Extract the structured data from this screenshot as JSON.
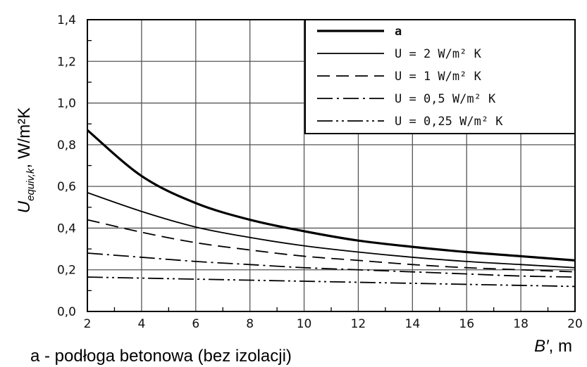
{
  "chart_data": {
    "type": "line",
    "x": [
      2,
      4,
      6,
      8,
      10,
      12,
      14,
      16,
      18,
      20
    ],
    "xlim": [
      2,
      20
    ],
    "ylim": [
      0.0,
      1.4
    ],
    "x_ticks": [
      "2",
      "4",
      "6",
      "8",
      "10",
      "12",
      "14",
      "16",
      "18",
      "20"
    ],
    "y_ticks": [
      "0,0",
      "0,2",
      "0,4",
      "0,6",
      "0,8",
      "1,0",
      "1,2",
      "1,4"
    ],
    "grid": true,
    "legend_position": "top-right",
    "ylabel": {
      "main": "U",
      "sub": "equiv,k",
      "unit": ", W/m²K"
    },
    "xlabel": {
      "main": "B′",
      "unit": ", m"
    },
    "caption": "a - podłoga betonowa (bez izolacji)",
    "series": [
      {
        "name": "a",
        "style": "solid-thick",
        "color": "#000000",
        "values": [
          0.87,
          0.65,
          0.52,
          0.44,
          0.385,
          0.34,
          0.31,
          0.285,
          0.265,
          0.245
        ]
      },
      {
        "name": "U = 2 W/m² K",
        "style": "solid",
        "color": "#000000",
        "values": [
          0.57,
          0.48,
          0.405,
          0.355,
          0.315,
          0.285,
          0.26,
          0.24,
          0.225,
          0.21
        ]
      },
      {
        "name": "U = 1 W/m² K",
        "style": "dashed",
        "color": "#000000",
        "values": [
          0.44,
          0.38,
          0.33,
          0.295,
          0.265,
          0.245,
          0.225,
          0.21,
          0.2,
          0.19
        ]
      },
      {
        "name": "U = 0,5 W/m² K",
        "style": "dashdot",
        "color": "#000000",
        "values": [
          0.28,
          0.26,
          0.24,
          0.225,
          0.21,
          0.2,
          0.19,
          0.18,
          0.17,
          0.165
        ]
      },
      {
        "name": "U = 0,25 W/m² K",
        "style": "dashdotdot",
        "color": "#000000",
        "values": [
          0.165,
          0.16,
          0.155,
          0.15,
          0.145,
          0.14,
          0.135,
          0.13,
          0.125,
          0.12
        ]
      }
    ]
  }
}
